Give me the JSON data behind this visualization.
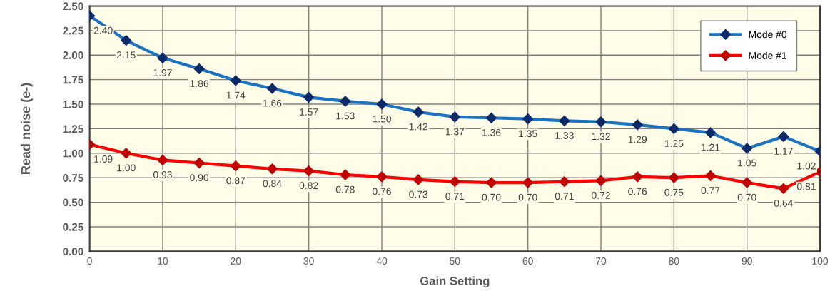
{
  "chart_data": {
    "type": "line",
    "xlabel": "Gain Setting",
    "ylabel": "Read noise (e-)",
    "x": [
      0,
      5,
      10,
      15,
      20,
      25,
      30,
      35,
      40,
      45,
      50,
      55,
      60,
      65,
      70,
      75,
      80,
      85,
      90,
      95,
      100
    ],
    "series": [
      {
        "name": "Mode #0",
        "color": "#1a72c0",
        "values": [
          2.4,
          2.15,
          1.97,
          1.86,
          1.74,
          1.66,
          1.57,
          1.53,
          1.5,
          1.42,
          1.37,
          1.36,
          1.35,
          1.33,
          1.32,
          1.29,
          1.25,
          1.21,
          1.05,
          1.17,
          1.02
        ],
        "value_labels": [
          "2.40",
          "2.15",
          "1.97",
          "1.86",
          "1.74",
          "1.66",
          "1.57",
          "1.53",
          "1.50",
          "1.42",
          "1.37",
          "1.36",
          "1.35",
          "1.33",
          "1.32",
          "1.29",
          "1.25",
          "1.21",
          "1.05",
          "1.17",
          "1.02"
        ]
      },
      {
        "name": "Mode #1",
        "color": "#ff0000",
        "values": [
          1.09,
          1.0,
          0.93,
          0.9,
          0.87,
          0.84,
          0.82,
          0.78,
          0.76,
          0.73,
          0.71,
          0.7,
          0.7,
          0.71,
          0.72,
          0.76,
          0.75,
          0.77,
          0.7,
          0.64,
          0.81
        ],
        "value_labels": [
          "1.09",
          "1.00",
          "0.93",
          "0.90",
          "0.87",
          "0.84",
          "0.82",
          "0.78",
          "0.76",
          "0.73",
          "0.71",
          "0.70",
          "0.70",
          "0.71",
          "0.72",
          "0.76",
          "0.75",
          "0.77",
          "0.70",
          "0.64",
          "0.81"
        ]
      }
    ],
    "xlim": [
      0,
      100
    ],
    "xticks": [
      0,
      10,
      20,
      30,
      40,
      50,
      60,
      70,
      80,
      90,
      100
    ],
    "ylim": [
      0,
      2.5
    ],
    "yticks": [
      {
        "value": 0,
        "label": "0.00"
      },
      {
        "value": 0.25,
        "label": "0.25"
      },
      {
        "value": 0.5,
        "label": "0.50"
      },
      {
        "value": 0.75,
        "label": "0.75"
      },
      {
        "value": 1.0,
        "label": "1.00"
      },
      {
        "value": 1.25,
        "label": "1.25"
      },
      {
        "value": 1.5,
        "label": "1.50"
      },
      {
        "value": 1.75,
        "label": "1.75"
      },
      {
        "value": 2.0,
        "label": "2.00"
      },
      {
        "value": 2.25,
        "label": "2.25"
      },
      {
        "value": 2.5,
        "label": "2.50"
      }
    ],
    "grid": true,
    "legend": "top right",
    "marker": "diamond",
    "line_style": "solid"
  }
}
